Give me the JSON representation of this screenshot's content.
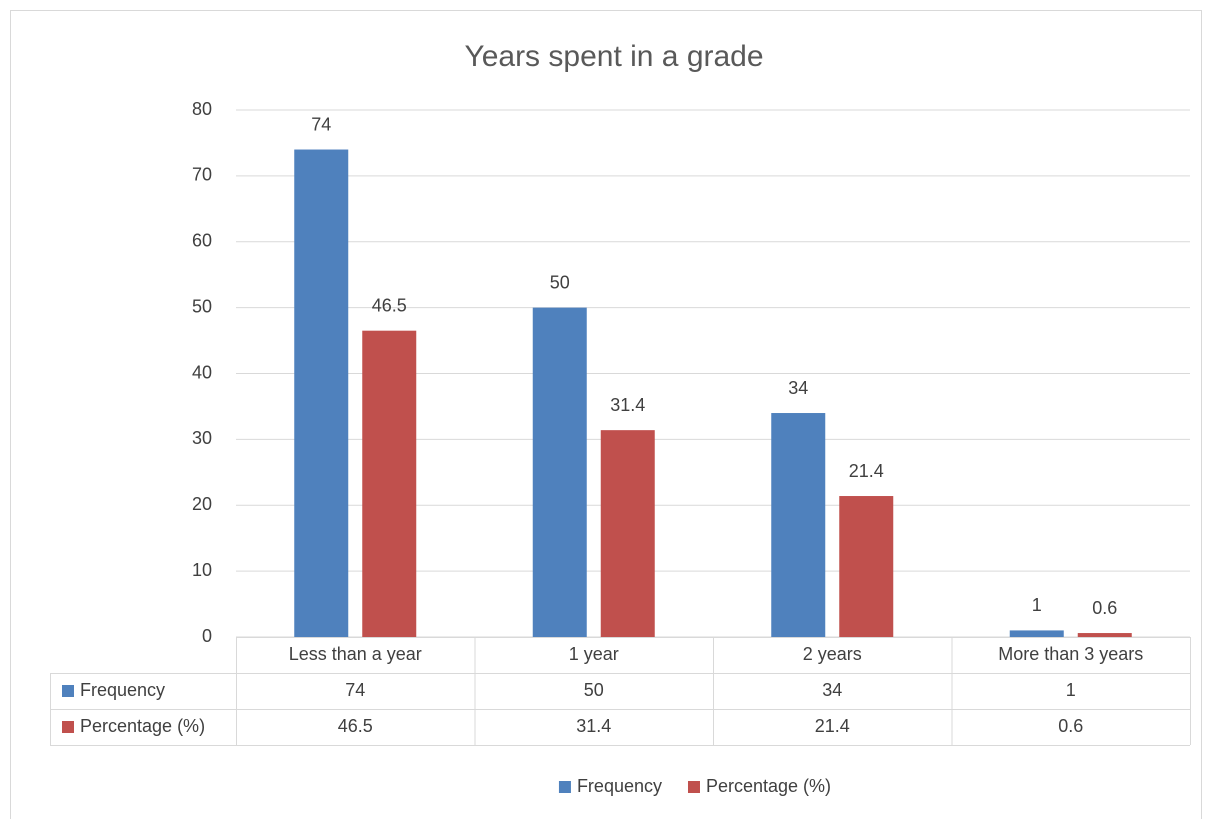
{
  "chart_data": {
    "type": "bar",
    "title": "Years spent in a grade",
    "categories": [
      "Less than a year",
      "1 year",
      "2 years",
      "More than 3 years"
    ],
    "series": [
      {
        "name": "Frequency",
        "color": "#4f81bd",
        "values": [
          74,
          50,
          34,
          1
        ]
      },
      {
        "name": "Percentage (%)",
        "color": "#c0504d",
        "values": [
          46.5,
          31.4,
          21.4,
          0.6
        ]
      }
    ],
    "ylim": [
      0,
      80
    ],
    "yticks": [
      0,
      10,
      20,
      30,
      40,
      50,
      60,
      70,
      80
    ],
    "grid": true,
    "legend": "bottom",
    "data_table": true
  }
}
